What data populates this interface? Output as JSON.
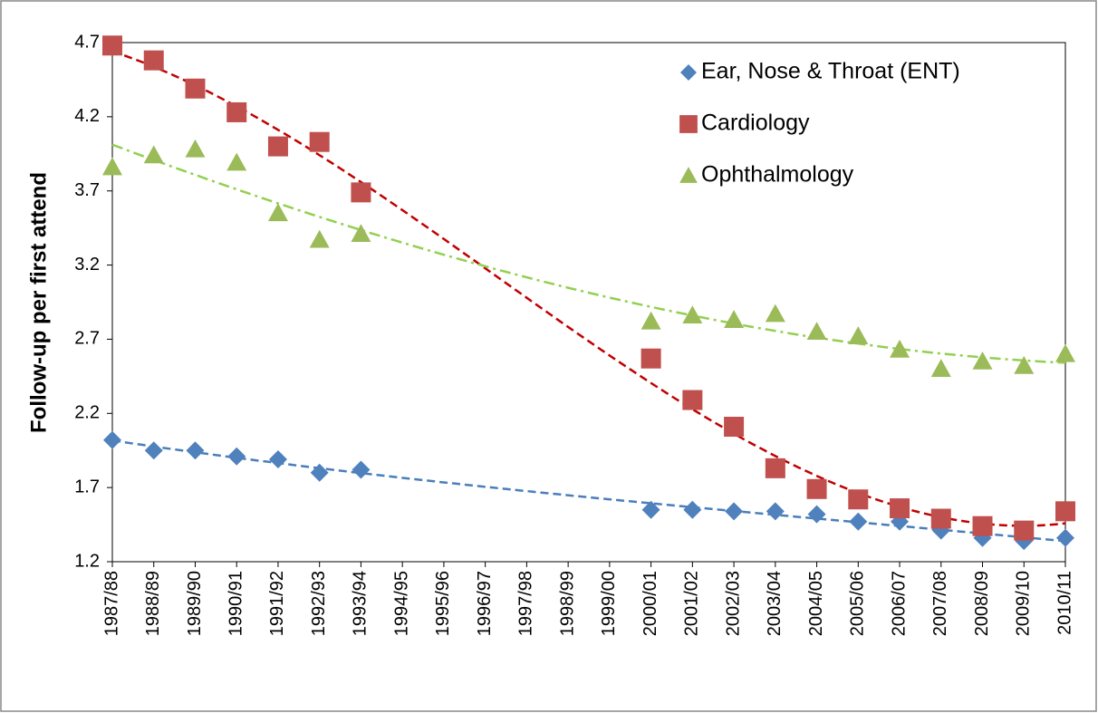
{
  "chart_data": {
    "type": "line",
    "y_label": "Follow-up per first attend",
    "categories": [
      "1987/88",
      "1988/89",
      "1989/90",
      "1990/91",
      "1991/92",
      "1992/93",
      "1993/94",
      "1994/95",
      "1995/96",
      "1996/97",
      "1997/98",
      "1998/99",
      "1999/00",
      "2000/01",
      "2001/02",
      "2002/03",
      "2003/04",
      "2004/05",
      "2005/06",
      "2006/07",
      "2007/08",
      "2008/09",
      "2009/10",
      "2010/11"
    ],
    "series": [
      {
        "name": "Ear, Nose & Throat (ENT)",
        "color": "#4f81bd",
        "marker": "diamond",
        "trendline_color": "#4a7ebb",
        "values": [
          2.02,
          1.95,
          1.95,
          1.91,
          1.89,
          1.8,
          1.82,
          null,
          null,
          null,
          null,
          null,
          null,
          1.55,
          1.55,
          1.54,
          1.54,
          1.52,
          1.47,
          1.47,
          1.41,
          1.36,
          1.34,
          1.36
        ]
      },
      {
        "name": "Cardiology",
        "color": "#c0504d",
        "marker": "square",
        "trendline_color": "#c00000",
        "values": [
          4.68,
          4.58,
          4.39,
          4.23,
          4.0,
          4.03,
          3.69,
          null,
          null,
          null,
          null,
          null,
          null,
          2.57,
          2.29,
          2.11,
          1.83,
          1.69,
          1.62,
          1.56,
          1.49,
          1.44,
          1.41,
          1.54
        ]
      },
      {
        "name": "Ophthalmology",
        "color": "#9bbb59",
        "marker": "triangle",
        "trendline_color": "#92d050",
        "values": [
          3.86,
          3.94,
          3.98,
          3.89,
          3.55,
          3.37,
          3.41,
          null,
          null,
          null,
          null,
          null,
          null,
          2.82,
          2.86,
          2.83,
          2.87,
          2.75,
          2.72,
          2.63,
          2.5,
          2.55,
          2.52,
          2.6
        ]
      }
    ],
    "ylim": [
      1.2,
      4.7
    ],
    "yticks": [
      1.2,
      1.7,
      2.2,
      2.7,
      3.2,
      3.7,
      4.2,
      4.7
    ],
    "grid": false,
    "legend": "top-right"
  }
}
